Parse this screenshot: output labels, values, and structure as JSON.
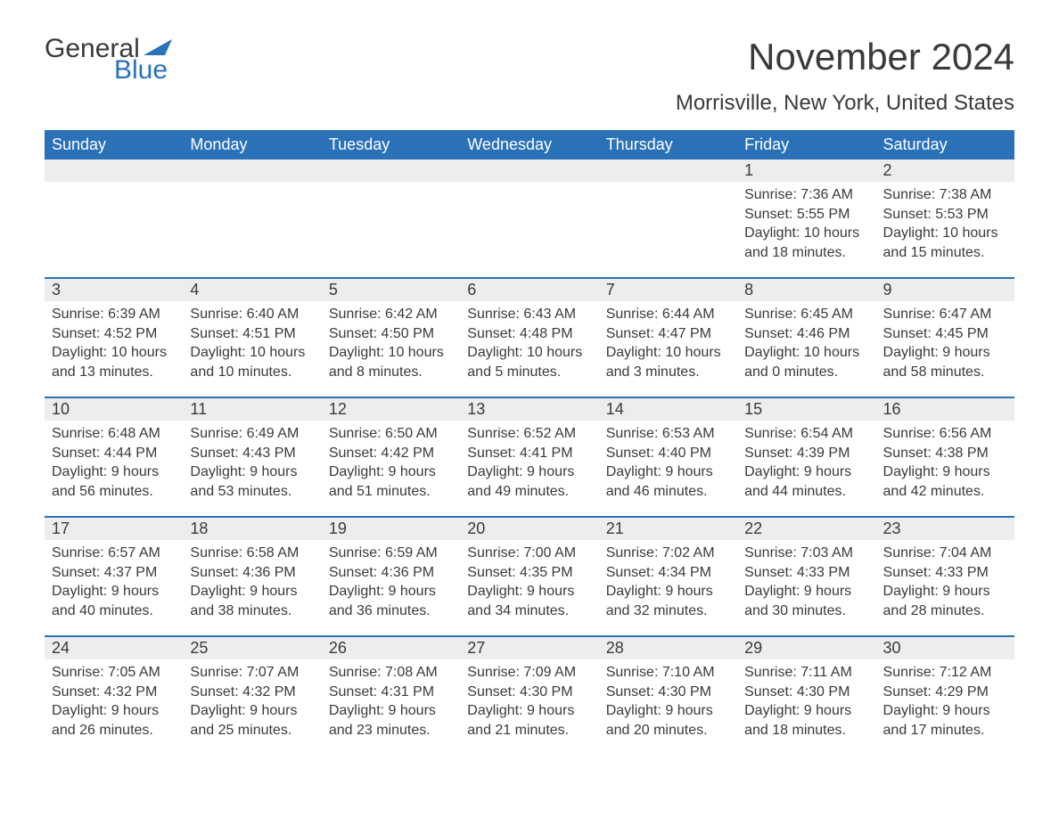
{
  "logo": {
    "text1": "General",
    "text2": "Blue",
    "flag_color": "#2a71b8"
  },
  "title": "November 2024",
  "subtitle": "Morrisville, New York, United States",
  "colors": {
    "header_bg": "#2a71b8",
    "header_text": "#ffffff",
    "daynum_bg": "#ededed",
    "row_border": "#2a71b8",
    "body_text": "#3a3a3a",
    "page_bg": "#ffffff"
  },
  "fonts": {
    "title_pt": 42,
    "subtitle_pt": 24,
    "header_pt": 18,
    "daynum_pt": 18,
    "detail_pt": 16
  },
  "weekdays": [
    "Sunday",
    "Monday",
    "Tuesday",
    "Wednesday",
    "Thursday",
    "Friday",
    "Saturday"
  ],
  "weeks": [
    [
      null,
      null,
      null,
      null,
      null,
      {
        "n": "1",
        "sunrise": "7:36 AM",
        "sunset": "5:55 PM",
        "dl1": "Daylight: 10 hours",
        "dl2": "and 18 minutes."
      },
      {
        "n": "2",
        "sunrise": "7:38 AM",
        "sunset": "5:53 PM",
        "dl1": "Daylight: 10 hours",
        "dl2": "and 15 minutes."
      }
    ],
    [
      {
        "n": "3",
        "sunrise": "6:39 AM",
        "sunset": "4:52 PM",
        "dl1": "Daylight: 10 hours",
        "dl2": "and 13 minutes."
      },
      {
        "n": "4",
        "sunrise": "6:40 AM",
        "sunset": "4:51 PM",
        "dl1": "Daylight: 10 hours",
        "dl2": "and 10 minutes."
      },
      {
        "n": "5",
        "sunrise": "6:42 AM",
        "sunset": "4:50 PM",
        "dl1": "Daylight: 10 hours",
        "dl2": "and 8 minutes."
      },
      {
        "n": "6",
        "sunrise": "6:43 AM",
        "sunset": "4:48 PM",
        "dl1": "Daylight: 10 hours",
        "dl2": "and 5 minutes."
      },
      {
        "n": "7",
        "sunrise": "6:44 AM",
        "sunset": "4:47 PM",
        "dl1": "Daylight: 10 hours",
        "dl2": "and 3 minutes."
      },
      {
        "n": "8",
        "sunrise": "6:45 AM",
        "sunset": "4:46 PM",
        "dl1": "Daylight: 10 hours",
        "dl2": "and 0 minutes."
      },
      {
        "n": "9",
        "sunrise": "6:47 AM",
        "sunset": "4:45 PM",
        "dl1": "Daylight: 9 hours",
        "dl2": "and 58 minutes."
      }
    ],
    [
      {
        "n": "10",
        "sunrise": "6:48 AM",
        "sunset": "4:44 PM",
        "dl1": "Daylight: 9 hours",
        "dl2": "and 56 minutes."
      },
      {
        "n": "11",
        "sunrise": "6:49 AM",
        "sunset": "4:43 PM",
        "dl1": "Daylight: 9 hours",
        "dl2": "and 53 minutes."
      },
      {
        "n": "12",
        "sunrise": "6:50 AM",
        "sunset": "4:42 PM",
        "dl1": "Daylight: 9 hours",
        "dl2": "and 51 minutes."
      },
      {
        "n": "13",
        "sunrise": "6:52 AM",
        "sunset": "4:41 PM",
        "dl1": "Daylight: 9 hours",
        "dl2": "and 49 minutes."
      },
      {
        "n": "14",
        "sunrise": "6:53 AM",
        "sunset": "4:40 PM",
        "dl1": "Daylight: 9 hours",
        "dl2": "and 46 minutes."
      },
      {
        "n": "15",
        "sunrise": "6:54 AM",
        "sunset": "4:39 PM",
        "dl1": "Daylight: 9 hours",
        "dl2": "and 44 minutes."
      },
      {
        "n": "16",
        "sunrise": "6:56 AM",
        "sunset": "4:38 PM",
        "dl1": "Daylight: 9 hours",
        "dl2": "and 42 minutes."
      }
    ],
    [
      {
        "n": "17",
        "sunrise": "6:57 AM",
        "sunset": "4:37 PM",
        "dl1": "Daylight: 9 hours",
        "dl2": "and 40 minutes."
      },
      {
        "n": "18",
        "sunrise": "6:58 AM",
        "sunset": "4:36 PM",
        "dl1": "Daylight: 9 hours",
        "dl2": "and 38 minutes."
      },
      {
        "n": "19",
        "sunrise": "6:59 AM",
        "sunset": "4:36 PM",
        "dl1": "Daylight: 9 hours",
        "dl2": "and 36 minutes."
      },
      {
        "n": "20",
        "sunrise": "7:00 AM",
        "sunset": "4:35 PM",
        "dl1": "Daylight: 9 hours",
        "dl2": "and 34 minutes."
      },
      {
        "n": "21",
        "sunrise": "7:02 AM",
        "sunset": "4:34 PM",
        "dl1": "Daylight: 9 hours",
        "dl2": "and 32 minutes."
      },
      {
        "n": "22",
        "sunrise": "7:03 AM",
        "sunset": "4:33 PM",
        "dl1": "Daylight: 9 hours",
        "dl2": "and 30 minutes."
      },
      {
        "n": "23",
        "sunrise": "7:04 AM",
        "sunset": "4:33 PM",
        "dl1": "Daylight: 9 hours",
        "dl2": "and 28 minutes."
      }
    ],
    [
      {
        "n": "24",
        "sunrise": "7:05 AM",
        "sunset": "4:32 PM",
        "dl1": "Daylight: 9 hours",
        "dl2": "and 26 minutes."
      },
      {
        "n": "25",
        "sunrise": "7:07 AM",
        "sunset": "4:32 PM",
        "dl1": "Daylight: 9 hours",
        "dl2": "and 25 minutes."
      },
      {
        "n": "26",
        "sunrise": "7:08 AM",
        "sunset": "4:31 PM",
        "dl1": "Daylight: 9 hours",
        "dl2": "and 23 minutes."
      },
      {
        "n": "27",
        "sunrise": "7:09 AM",
        "sunset": "4:30 PM",
        "dl1": "Daylight: 9 hours",
        "dl2": "and 21 minutes."
      },
      {
        "n": "28",
        "sunrise": "7:10 AM",
        "sunset": "4:30 PM",
        "dl1": "Daylight: 9 hours",
        "dl2": "and 20 minutes."
      },
      {
        "n": "29",
        "sunrise": "7:11 AM",
        "sunset": "4:30 PM",
        "dl1": "Daylight: 9 hours",
        "dl2": "and 18 minutes."
      },
      {
        "n": "30",
        "sunrise": "7:12 AM",
        "sunset": "4:29 PM",
        "dl1": "Daylight: 9 hours",
        "dl2": "and 17 minutes."
      }
    ]
  ]
}
